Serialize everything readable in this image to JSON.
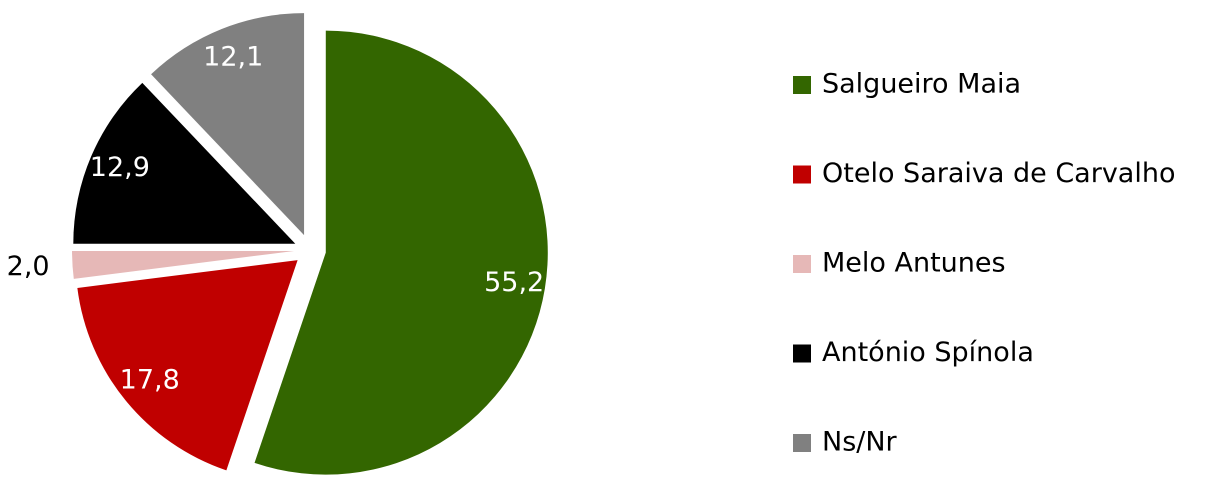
{
  "chart_data": {
    "type": "pie",
    "categories": [
      "Salgueiro Maia",
      "Otelo Saraiva de Carvalho",
      "Melo Antunes",
      "António Spínola",
      "Ns/Nr"
    ],
    "values": [
      55.2,
      17.8,
      2.0,
      12.9,
      12.1
    ],
    "value_labels": [
      "55,2",
      "17,8",
      "2,0",
      "12,9",
      "12,1"
    ],
    "colors": [
      "#336600",
      "#c00000",
      "#e6b8b7",
      "#000000",
      "#808080"
    ],
    "legend": "right"
  }
}
